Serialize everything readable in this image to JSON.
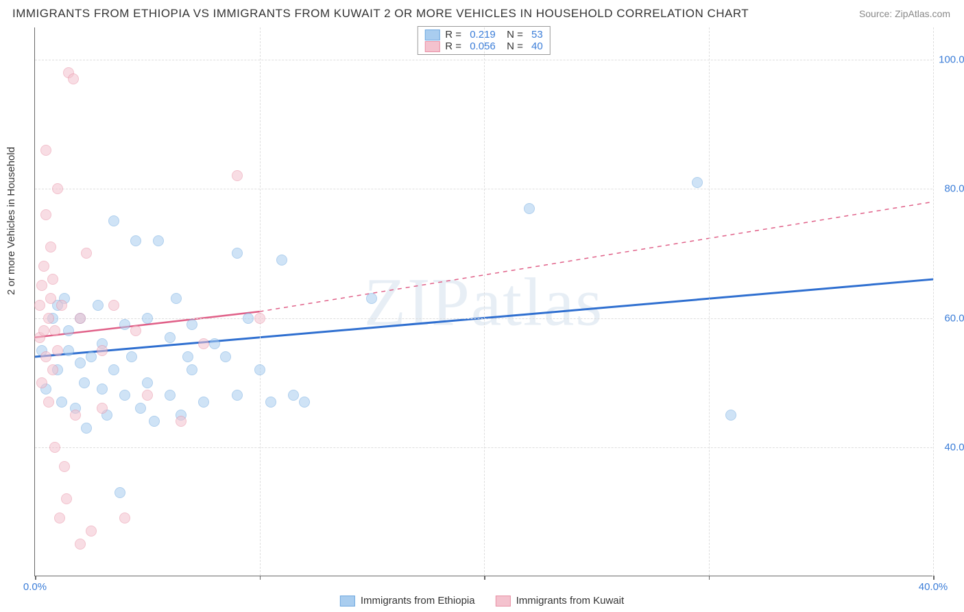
{
  "title": "IMMIGRANTS FROM ETHIOPIA VS IMMIGRANTS FROM KUWAIT 2 OR MORE VEHICLES IN HOUSEHOLD CORRELATION CHART",
  "source": "Source: ZipAtlas.com",
  "watermark": "ZIPatlas",
  "ylabel": "2 or more Vehicles in Household",
  "chart": {
    "type": "scatter",
    "background_color": "#ffffff",
    "grid_color": "#dddddd",
    "axis_color": "#666666",
    "label_color": "#333333",
    "tick_color": "#3b7dd8",
    "label_fontsize": 15,
    "tick_fontsize": 15,
    "title_fontsize": 17,
    "xlim": [
      0,
      40
    ],
    "ylim": [
      20,
      105
    ],
    "xticks": [
      0,
      10,
      20,
      30,
      40
    ],
    "xtick_labels": [
      "0.0%",
      "",
      "",
      "",
      "40.0%"
    ],
    "yticks": [
      40,
      60,
      80,
      100
    ],
    "ytick_labels": [
      "40.0%",
      "60.0%",
      "80.0%",
      "100.0%"
    ],
    "marker_radius": 8,
    "marker_opacity": 0.55,
    "marker_border": 1.2,
    "series": [
      {
        "name": "Immigrants from Ethiopia",
        "fill": "#a9cdef",
        "stroke": "#6fa8e0",
        "trend_color": "#2f6fd0",
        "trend_width": 3,
        "trend": {
          "x1": 0,
          "y1": 54,
          "x2": 40,
          "y2": 66
        },
        "R": "0.219",
        "N": "53",
        "points": [
          [
            0.3,
            55
          ],
          [
            0.5,
            49
          ],
          [
            0.8,
            60
          ],
          [
            1.0,
            62
          ],
          [
            1.0,
            52
          ],
          [
            1.2,
            47
          ],
          [
            1.3,
            63
          ],
          [
            1.5,
            58
          ],
          [
            1.5,
            55
          ],
          [
            1.8,
            46
          ],
          [
            2.0,
            53
          ],
          [
            2.0,
            60
          ],
          [
            2.2,
            50
          ],
          [
            2.3,
            43
          ],
          [
            2.5,
            54
          ],
          [
            2.8,
            62
          ],
          [
            3.0,
            56
          ],
          [
            3.0,
            49
          ],
          [
            3.2,
            45
          ],
          [
            3.5,
            75
          ],
          [
            3.5,
            52
          ],
          [
            3.8,
            33
          ],
          [
            4.0,
            59
          ],
          [
            4.0,
            48
          ],
          [
            4.3,
            54
          ],
          [
            4.5,
            72
          ],
          [
            4.7,
            46
          ],
          [
            5.0,
            50
          ],
          [
            5.0,
            60
          ],
          [
            5.3,
            44
          ],
          [
            5.5,
            72
          ],
          [
            6.0,
            57
          ],
          [
            6.0,
            48
          ],
          [
            6.3,
            63
          ],
          [
            6.5,
            45
          ],
          [
            7.0,
            52
          ],
          [
            7.0,
            59
          ],
          [
            7.5,
            47
          ],
          [
            8.0,
            56
          ],
          [
            8.5,
            54
          ],
          [
            9.0,
            70
          ],
          [
            9.0,
            48
          ],
          [
            9.5,
            60
          ],
          [
            10.0,
            52
          ],
          [
            10.5,
            47
          ],
          [
            11.0,
            69
          ],
          [
            11.5,
            48
          ],
          [
            15.0,
            63
          ],
          [
            22.0,
            77
          ],
          [
            29.5,
            81
          ],
          [
            31.0,
            45
          ],
          [
            12.0,
            47
          ],
          [
            6.8,
            54
          ]
        ]
      },
      {
        "name": "Immigrants from Kuwait",
        "fill": "#f4c2ce",
        "stroke": "#e890a5",
        "trend_color": "#e06088",
        "trend_width": 2.5,
        "trend_solid": {
          "x1": 0,
          "y1": 57,
          "x2": 10,
          "y2": 61
        },
        "trend_dash": {
          "x1": 10,
          "y1": 61,
          "x2": 40,
          "y2": 78
        },
        "R": "0.056",
        "N": "40",
        "points": [
          [
            0.2,
            57
          ],
          [
            0.2,
            62
          ],
          [
            0.3,
            65
          ],
          [
            0.3,
            50
          ],
          [
            0.4,
            68
          ],
          [
            0.4,
            58
          ],
          [
            0.5,
            76
          ],
          [
            0.5,
            54
          ],
          [
            0.5,
            86
          ],
          [
            0.6,
            60
          ],
          [
            0.6,
            47
          ],
          [
            0.7,
            63
          ],
          [
            0.7,
            71
          ],
          [
            0.8,
            52
          ],
          [
            0.8,
            66
          ],
          [
            0.9,
            40
          ],
          [
            0.9,
            58
          ],
          [
            1.0,
            80
          ],
          [
            1.0,
            55
          ],
          [
            1.1,
            29
          ],
          [
            1.2,
            62
          ],
          [
            1.3,
            37
          ],
          [
            1.4,
            32
          ],
          [
            1.5,
            98
          ],
          [
            1.7,
            97
          ],
          [
            1.8,
            45
          ],
          [
            2.0,
            60
          ],
          [
            2.0,
            25
          ],
          [
            2.3,
            70
          ],
          [
            2.5,
            27
          ],
          [
            3.0,
            55
          ],
          [
            3.0,
            46
          ],
          [
            3.5,
            62
          ],
          [
            4.0,
            29
          ],
          [
            4.5,
            58
          ],
          [
            5.0,
            48
          ],
          [
            6.5,
            44
          ],
          [
            7.5,
            56
          ],
          [
            9.0,
            82
          ],
          [
            10.0,
            60
          ]
        ]
      }
    ]
  },
  "stats_legend": {
    "r_color": "#3b7dd8",
    "n_color": "#3b7dd8",
    "label_color": "#333333"
  }
}
